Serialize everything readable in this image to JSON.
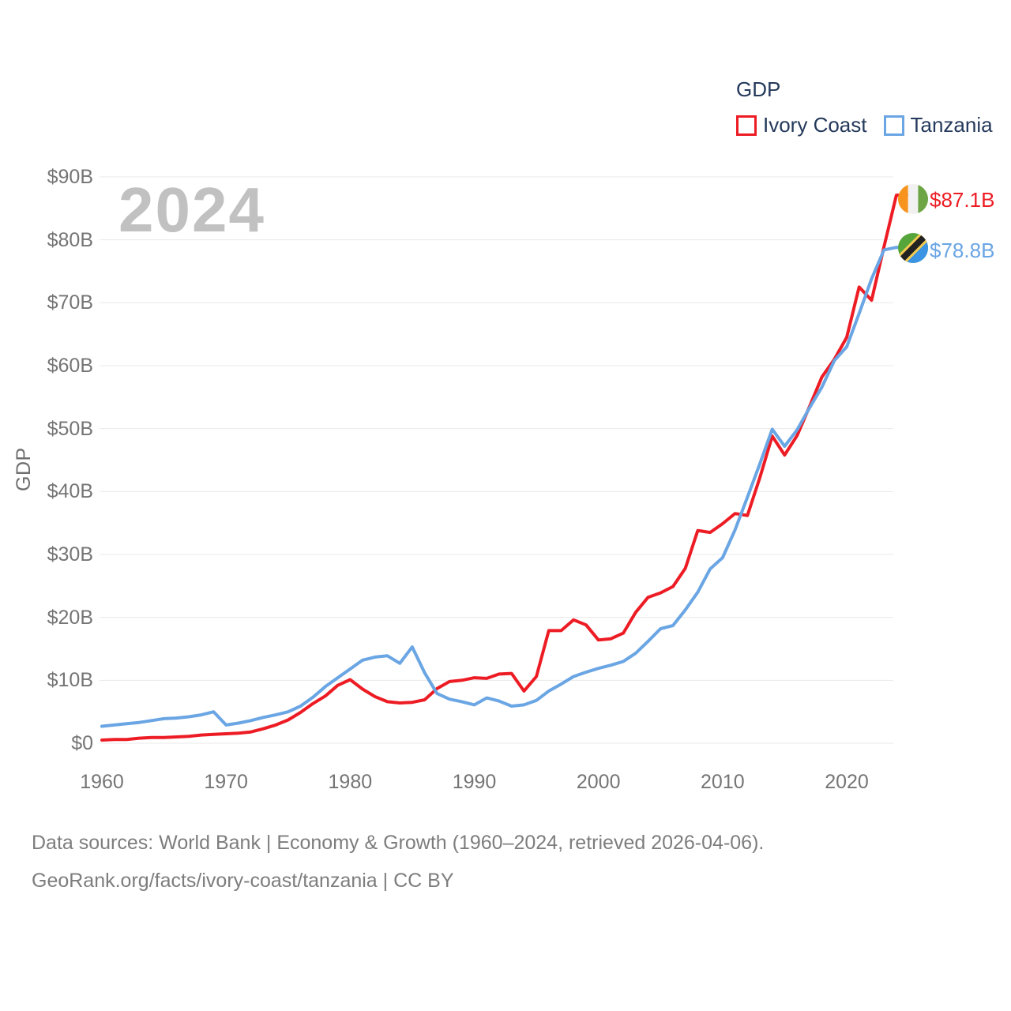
{
  "chart_data": {
    "type": "line",
    "title": "GDP",
    "ylabel": "GDP",
    "xlabel": "",
    "grid": "horizontal",
    "legend_position": "top-right",
    "xlim": [
      1960,
      2024
    ],
    "ylim": [
      0,
      90
    ],
    "x_ticks": [
      1960,
      1970,
      1980,
      1990,
      2000,
      2010,
      2020
    ],
    "y_ticks": [
      {
        "label": "$0",
        "value": 0
      },
      {
        "label": "$10B",
        "value": 10
      },
      {
        "label": "$20B",
        "value": 20
      },
      {
        "label": "$30B",
        "value": 30
      },
      {
        "label": "$40B",
        "value": 40
      },
      {
        "label": "$50B",
        "value": 50
      },
      {
        "label": "$60B",
        "value": 60
      },
      {
        "label": "$70B",
        "value": 70
      },
      {
        "label": "$80B",
        "value": 80
      },
      {
        "label": "$90B",
        "value": 90
      }
    ],
    "x": [
      1960,
      1961,
      1962,
      1963,
      1964,
      1965,
      1966,
      1967,
      1968,
      1969,
      1970,
      1971,
      1972,
      1973,
      1974,
      1975,
      1976,
      1977,
      1978,
      1979,
      1980,
      1981,
      1982,
      1983,
      1984,
      1985,
      1986,
      1987,
      1988,
      1989,
      1990,
      1991,
      1992,
      1993,
      1994,
      1995,
      1996,
      1997,
      1998,
      1999,
      2000,
      2001,
      2002,
      2003,
      2004,
      2005,
      2006,
      2007,
      2008,
      2009,
      2010,
      2011,
      2012,
      2013,
      2014,
      2015,
      2016,
      2017,
      2018,
      2019,
      2020,
      2021,
      2022,
      2023,
      2024
    ],
    "series": [
      {
        "name": "Ivory Coast",
        "color": "#ed1c24",
        "end_label": "$87.1B",
        "values": [
          0.5,
          0.6,
          0.6,
          0.8,
          0.9,
          0.9,
          1.0,
          1.1,
          1.3,
          1.4,
          1.5,
          1.6,
          1.8,
          2.3,
          2.9,
          3.7,
          4.9,
          6.3,
          7.5,
          9.2,
          10.1,
          8.6,
          7.4,
          6.6,
          6.4,
          6.5,
          6.9,
          8.7,
          9.8,
          10.0,
          10.4,
          10.3,
          11.0,
          11.1,
          8.3,
          10.6,
          17.9,
          17.9,
          19.6,
          18.8,
          16.4,
          16.6,
          17.5,
          20.8,
          23.2,
          23.9,
          24.9,
          27.8,
          33.8,
          33.5,
          34.9,
          36.5,
          36.2,
          42.2,
          48.8,
          45.8,
          48.9,
          53.5,
          58.2,
          61.0,
          64.5,
          72.5,
          70.4,
          78.9,
          87.1
        ]
      },
      {
        "name": "Tanzania",
        "color": "#6aa5e4",
        "end_label": "$78.8B",
        "values": [
          2.7,
          2.9,
          3.1,
          3.3,
          3.6,
          3.9,
          4.0,
          4.2,
          4.5,
          5.0,
          2.9,
          3.2,
          3.6,
          4.1,
          4.5,
          5.0,
          5.9,
          7.3,
          9.0,
          10.4,
          11.8,
          13.2,
          13.7,
          13.9,
          12.7,
          15.3,
          11.2,
          7.9,
          7.0,
          6.6,
          6.1,
          7.2,
          6.7,
          5.9,
          6.1,
          6.8,
          8.3,
          9.4,
          10.6,
          11.3,
          11.9,
          12.4,
          13.0,
          14.3,
          16.2,
          18.2,
          18.7,
          21.2,
          24.0,
          27.7,
          29.5,
          33.9,
          39.1,
          44.4,
          49.9,
          47.2,
          49.8,
          53.3,
          56.6,
          60.8,
          63.0,
          68.3,
          73.8,
          78.4,
          78.8
        ]
      }
    ]
  },
  "legend": {
    "title": "GDP",
    "items": [
      {
        "label": "Ivory Coast",
        "color": "#ed1c24"
      },
      {
        "label": "Tanzania",
        "color": "#6aa5e4"
      }
    ]
  },
  "watermark": "2024",
  "end_labels": {
    "ivory_coast": "$87.1B",
    "tanzania": "$78.8B"
  },
  "source": {
    "line1": "Data sources: World Bank | Economy & Growth (1960–2024, retrieved 2026-04-06).",
    "line2": "GeoRank.org/facts/ivory-coast/tanzania | CC BY"
  }
}
